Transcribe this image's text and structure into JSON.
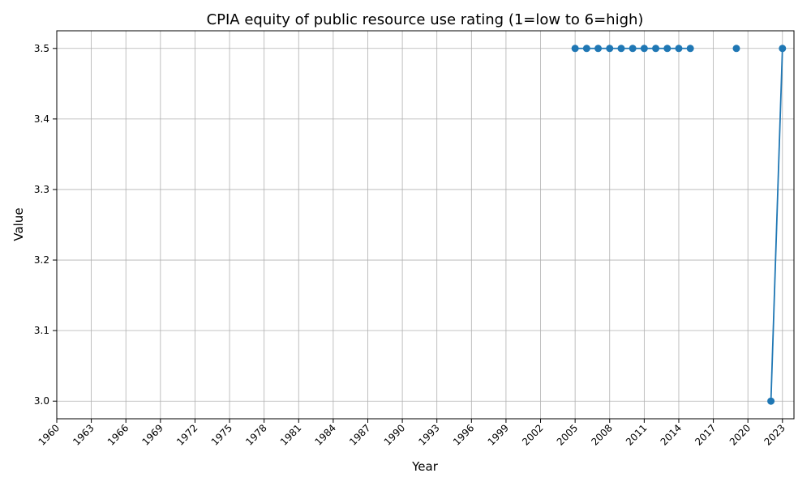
{
  "chart_data": {
    "type": "line",
    "title": "CPIA equity of public resource use rating (1=low to 6=high)",
    "xlabel": "Year",
    "ylabel": "Value",
    "xlim": [
      1960,
      2024
    ],
    "ylim": [
      2.975,
      3.525
    ],
    "x_ticks": [
      1960,
      1963,
      1966,
      1969,
      1972,
      1975,
      1978,
      1981,
      1984,
      1987,
      1990,
      1993,
      1996,
      1999,
      2002,
      2005,
      2008,
      2011,
      2014,
      2017,
      2020,
      2023
    ],
    "y_ticks": [
      3.0,
      3.1,
      3.2,
      3.3,
      3.4,
      3.5
    ],
    "y_tick_labels": [
      "3.0",
      "3.1",
      "3.2",
      "3.3",
      "3.4",
      "3.5"
    ],
    "grid": true,
    "legend": "none",
    "series": [
      {
        "color": "#1f77b4",
        "points": [
          {
            "x": 2005,
            "y": 3.5
          },
          {
            "x": 2006,
            "y": 3.5
          },
          {
            "x": 2007,
            "y": 3.5
          },
          {
            "x": 2008,
            "y": 3.5
          },
          {
            "x": 2009,
            "y": 3.5
          },
          {
            "x": 2010,
            "y": 3.5
          },
          {
            "x": 2011,
            "y": 3.5
          },
          {
            "x": 2012,
            "y": 3.5
          },
          {
            "x": 2013,
            "y": 3.5
          },
          {
            "x": 2014,
            "y": 3.5
          },
          {
            "x": 2015,
            "y": 3.5
          },
          {
            "x": 2016,
            "y": null
          },
          {
            "x": 2017,
            "y": null
          },
          {
            "x": 2018,
            "y": null
          },
          {
            "x": 2019,
            "y": 3.5
          },
          {
            "x": 2020,
            "y": null
          },
          {
            "x": 2021,
            "y": null
          },
          {
            "x": 2022,
            "y": 3.0
          },
          {
            "x": 2023,
            "y": 3.5
          }
        ]
      }
    ]
  }
}
